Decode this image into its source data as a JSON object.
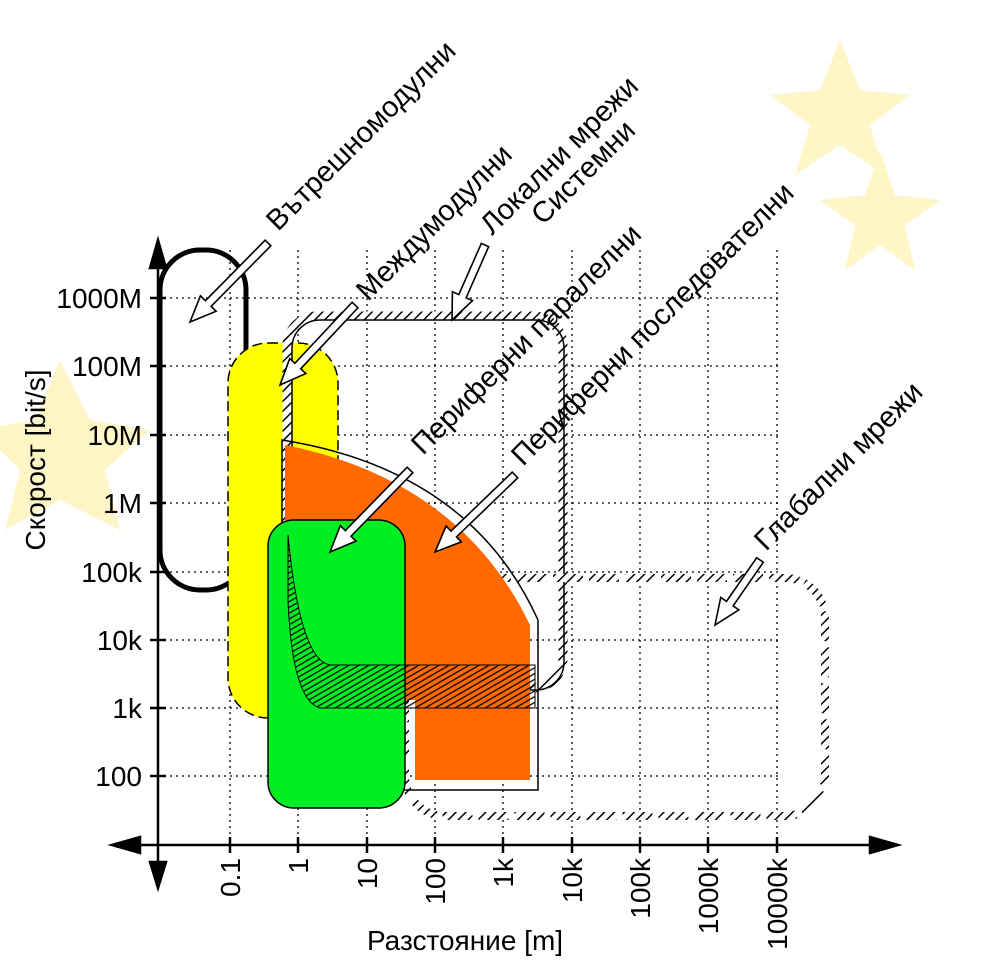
{
  "axes": {
    "y_label": "Скорост [bit/s]",
    "x_label": "Разстояние [m]",
    "y_ticks": [
      "1000M",
      "100M",
      "10M",
      "1M",
      "100k",
      "10k",
      "1k",
      "100"
    ],
    "x_ticks": [
      "0.1",
      "1",
      "10",
      "100",
      "1k",
      "10k",
      "100k",
      "1000k",
      "10000k"
    ]
  },
  "regions": [
    {
      "label": "Вътрешномодулни"
    },
    {
      "label": "Междумодулни"
    },
    {
      "label": "Локални мрежи"
    },
    {
      "label": "Системни"
    },
    {
      "label": "Периферни паралелни"
    },
    {
      "label": "Периферни последователни"
    },
    {
      "label": "Глабални мрежи"
    }
  ]
}
